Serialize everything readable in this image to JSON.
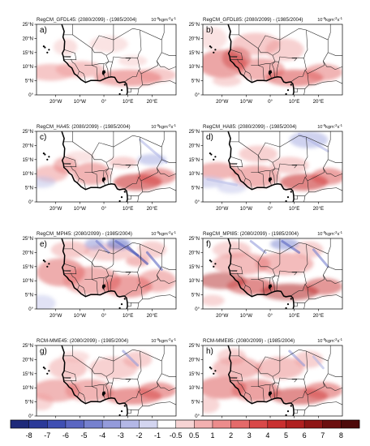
{
  "panels": [
    {
      "id": "a",
      "left": "RegCM_GFDL45: (2080/2099) - (1985/2004)",
      "right": "10",
      "letter": "a)",
      "pattern": "gfdl45"
    },
    {
      "id": "b",
      "left": "RegCM_GFDL85: (2080/2099) - (1985/2004)",
      "right": "10",
      "letter": "b)",
      "pattern": "gfdl85"
    },
    {
      "id": "c",
      "left": "RegCM_HA45: (2080/2099) - (1985/2004)",
      "right": "10",
      "letter": "c)",
      "pattern": "ha45"
    },
    {
      "id": "d",
      "left": "RegCM_HA85: (2080/2099) - (1985/2004)",
      "right": "10",
      "letter": "d)",
      "pattern": "ha85"
    },
    {
      "id": "e",
      "left": "RegCM_MPI45: (2080/2099) - (1985/2004)",
      "right": "10",
      "letter": "e)",
      "pattern": "mpi45"
    },
    {
      "id": "f",
      "left": "RegCM_MPI85: (2080/2099) - (1985/2004)",
      "right": "10",
      "letter": "f)",
      "pattern": "mpi85"
    },
    {
      "id": "g",
      "left": "RCM-MME45: (2080/2099) - (1985/2004)",
      "right": "10",
      "letter": "g)",
      "pattern": "mme45"
    },
    {
      "id": "h",
      "left": "RCM-MME85: (2080/2099) - (1985/2004)",
      "right": "10",
      "letter": "h)",
      "pattern": "mme85"
    }
  ],
  "units": {
    "exp": "-5",
    "unit": "kgm",
    "exp2": "-2",
    "unit2": "s",
    "exp3": "-1"
  },
  "lat_labels": [
    "25°N",
    "20°N",
    "15°N",
    "10°N",
    "5°N",
    "0°"
  ],
  "lon_labels": [
    "20°W",
    "10°W",
    "0°",
    "10°E",
    "20°E"
  ],
  "colorbar": {
    "labels": [
      "-8",
      "-7",
      "-6",
      "-5",
      "-4",
      "-3",
      "-2",
      "-1",
      "-0.5",
      "0.5",
      "1",
      "2",
      "3",
      "4",
      "5",
      "6",
      "7",
      "8"
    ],
    "colors": [
      "#1e2a7a",
      "#2b3a99",
      "#3f4fb3",
      "#5a66c2",
      "#7681cf",
      "#949bdb",
      "#b3b7e6",
      "#d3d5f0",
      "#ffffff",
      "#f7d4d4",
      "#f2b0b0",
      "#ec8c8c",
      "#e46a6a",
      "#d94848",
      "#c93030",
      "#b02020",
      "#8f1616",
      "#6b0e0e",
      "#4e0a0a"
    ]
  }
}
